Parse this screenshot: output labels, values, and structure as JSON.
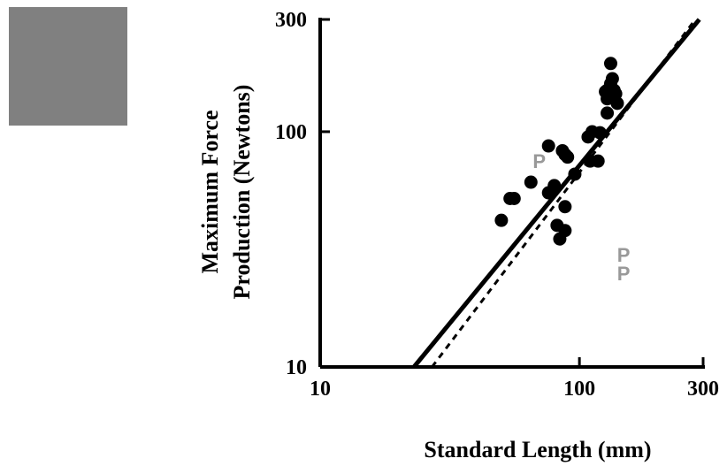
{
  "chart_data": {
    "type": "scatter",
    "x_scale": "log",
    "y_scale": "log",
    "xlim": [
      10,
      300
    ],
    "ylim": [
      10,
      300
    ],
    "x_ticks": [
      {
        "value": 10,
        "label": "10"
      },
      {
        "value": 100,
        "label": "100"
      },
      {
        "value": 300,
        "label": "300"
      }
    ],
    "y_ticks": [
      {
        "value": 10,
        "label": "10"
      },
      {
        "value": 100,
        "label": "100"
      },
      {
        "value": 300,
        "label": "300"
      }
    ],
    "xlabel": "Standard Length (mm)",
    "ylabel_lines": [
      "Maximum Force",
      "Production (Newtons)"
    ],
    "grid": false,
    "colors": {
      "points": "#000000",
      "p_markers": "#999999",
      "legend_swatch": "#808080"
    },
    "series": [
      {
        "marker": "circle",
        "points": [
          {
            "x": 132,
            "y": 195
          },
          {
            "x": 134,
            "y": 168
          },
          {
            "x": 132,
            "y": 160
          },
          {
            "x": 136,
            "y": 150
          },
          {
            "x": 138,
            "y": 145
          },
          {
            "x": 128,
            "y": 150
          },
          {
            "x": 126,
            "y": 148
          },
          {
            "x": 128,
            "y": 138
          },
          {
            "x": 132,
            "y": 140
          },
          {
            "x": 130,
            "y": 145
          },
          {
            "x": 140,
            "y": 132
          },
          {
            "x": 128,
            "y": 120
          },
          {
            "x": 112,
            "y": 100
          },
          {
            "x": 120,
            "y": 99
          },
          {
            "x": 108,
            "y": 95
          },
          {
            "x": 76,
            "y": 87
          },
          {
            "x": 86,
            "y": 83
          },
          {
            "x": 88,
            "y": 80
          },
          {
            "x": 90,
            "y": 78
          },
          {
            "x": 110,
            "y": 75
          },
          {
            "x": 118,
            "y": 75
          },
          {
            "x": 96,
            "y": 66
          },
          {
            "x": 65,
            "y": 61
          },
          {
            "x": 80,
            "y": 59
          },
          {
            "x": 76,
            "y": 55
          },
          {
            "x": 54,
            "y": 52
          },
          {
            "x": 56,
            "y": 52
          },
          {
            "x": 88,
            "y": 48
          },
          {
            "x": 50,
            "y": 42
          },
          {
            "x": 82,
            "y": 40
          },
          {
            "x": 88,
            "y": 38
          },
          {
            "x": 84,
            "y": 35
          }
        ]
      },
      {
        "marker": "letter",
        "text": "P",
        "points": [
          {
            "x": 70,
            "y": 75
          },
          {
            "x": 148,
            "y": 30
          },
          {
            "x": 148,
            "y": 25
          }
        ]
      }
    ],
    "fit_lines": [
      {
        "style": "solid",
        "x": [
          23,
          290
        ],
        "y": [
          10,
          300
        ]
      },
      {
        "style": "dashed",
        "x": [
          27,
          280
        ],
        "y": [
          10,
          300
        ]
      }
    ]
  }
}
